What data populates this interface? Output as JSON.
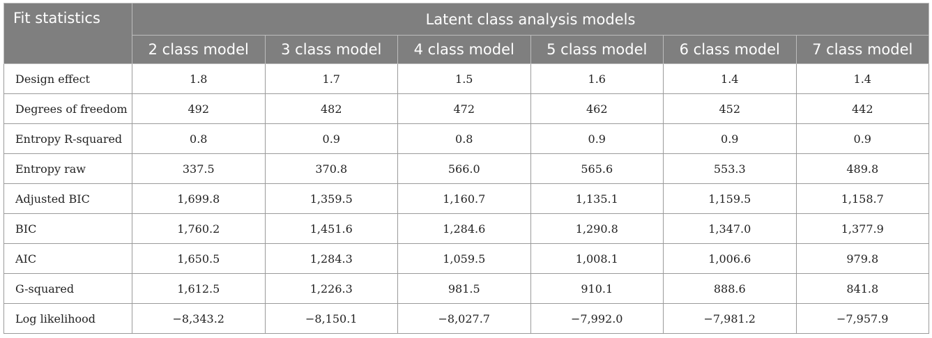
{
  "table": {
    "stub_header": "Fit statistics",
    "group_header": "Latent class analysis models",
    "columns": [
      "2 class model",
      "3 class model",
      "4 class model",
      "5 class model",
      "6 class model",
      "7 class model"
    ],
    "rows": [
      {
        "label": "Design effect",
        "values": [
          "1.8",
          "1.7",
          "1.5",
          "1.6",
          "1.4",
          "1.4"
        ]
      },
      {
        "label": "Degrees of freedom",
        "values": [
          "492",
          "482",
          "472",
          "462",
          "452",
          "442"
        ]
      },
      {
        "label": "Entropy R-squared",
        "values": [
          "0.8",
          "0.9",
          "0.8",
          "0.9",
          "0.9",
          "0.9"
        ]
      },
      {
        "label": "Entropy raw",
        "values": [
          "337.5",
          "370.8",
          "566.0",
          "565.6",
          "553.3",
          "489.8"
        ]
      },
      {
        "label": "Adjusted BIC",
        "values": [
          "1,699.8",
          "1,359.5",
          "1,160.7",
          "1,135.1",
          "1,159.5",
          "1,158.7"
        ]
      },
      {
        "label": "BIC",
        "values": [
          "1,760.2",
          "1,451.6",
          "1,284.6",
          "1,290.8",
          "1,347.0",
          "1,377.9"
        ]
      },
      {
        "label": "AIC",
        "values": [
          "1,650.5",
          "1,284.3",
          "1,059.5",
          "1,008.1",
          "1,006.6",
          "979.8"
        ]
      },
      {
        "label": "G-squared",
        "values": [
          "1,612.5",
          "1,226.3",
          "981.5",
          "910.1",
          "888.6",
          "841.8"
        ]
      },
      {
        "label": "Log likelihood",
        "values": [
          "−8,343.2",
          "−8,150.1",
          "−8,027.7",
          "−7,992.0",
          "−7,981.2",
          "−7,957.9"
        ]
      }
    ]
  },
  "colors": {
    "header_bg": "#7f7f7f",
    "header_text": "#ffffff",
    "border": "#9a9a9a"
  }
}
